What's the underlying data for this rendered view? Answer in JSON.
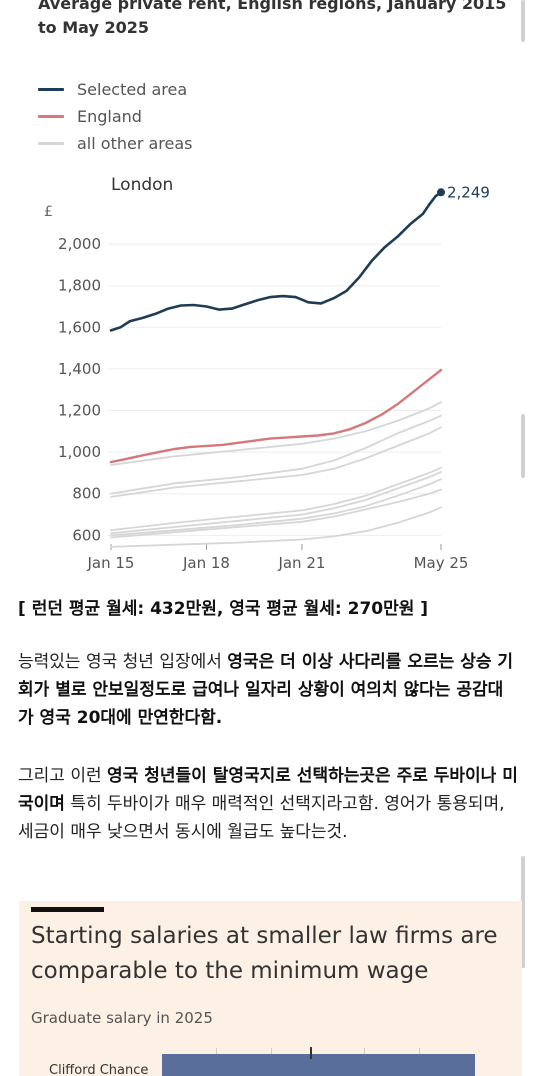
{
  "chart": {
    "title": "Average private rent, English regions, January 2015 to May 2025"
  },
  "legend": [
    {
      "label": "Selected area",
      "color": "#1d3c55"
    },
    {
      "label": "England",
      "color": "#d4787a"
    },
    {
      "label": "all other areas",
      "color": "#d6d6d6"
    }
  ],
  "chart_data": {
    "type": "line",
    "title": "Average private rent, English regions, January 2015 to May 2025",
    "panel_label": "London",
    "ylabel": "£",
    "ylim": [
      520,
      2260
    ],
    "yticks": [
      600,
      800,
      1000,
      1200,
      1400,
      1600,
      1800,
      2000
    ],
    "ytick_labels": [
      "600",
      "800",
      "1,000",
      "1,200",
      "1,400",
      "1,600",
      "1,800",
      "2,000"
    ],
    "xlim": [
      2015.0,
      2025.37
    ],
    "xticks": [
      2015.0,
      2018.0,
      2021.0,
      2025.37
    ],
    "xtick_labels": [
      "Jan 15",
      "Jan 18",
      "Jan 21",
      "May 25"
    ],
    "end_label": "2,249",
    "series": [
      {
        "name": "Selected area",
        "role": "selected",
        "color": "#1d3c55",
        "x": [
          2015.0,
          2015.3,
          2015.6,
          2016.0,
          2016.4,
          2016.8,
          2017.2,
          2017.6,
          2018.0,
          2018.4,
          2018.8,
          2019.2,
          2019.6,
          2020.0,
          2020.4,
          2020.8,
          2021.2,
          2021.6,
          2022.0,
          2022.4,
          2022.8,
          2023.2,
          2023.6,
          2024.0,
          2024.4,
          2024.8,
          2025.0,
          2025.2,
          2025.37
        ],
        "y": [
          1585,
          1600,
          1630,
          1645,
          1665,
          1690,
          1705,
          1707,
          1700,
          1685,
          1690,
          1710,
          1730,
          1745,
          1750,
          1745,
          1720,
          1715,
          1740,
          1775,
          1840,
          1920,
          1985,
          2035,
          2095,
          2145,
          2190,
          2230,
          2249
        ]
      },
      {
        "name": "England",
        "role": "england",
        "color": "#d4787a",
        "x": [
          2015.0,
          2015.5,
          2016.0,
          2016.5,
          2017.0,
          2017.5,
          2018.0,
          2018.5,
          2019.0,
          2019.5,
          2020.0,
          2020.5,
          2021.0,
          2021.5,
          2022.0,
          2022.5,
          2023.0,
          2023.5,
          2024.0,
          2024.5,
          2025.0,
          2025.37
        ],
        "y": [
          952,
          968,
          985,
          1000,
          1015,
          1025,
          1030,
          1035,
          1045,
          1055,
          1065,
          1070,
          1075,
          1080,
          1090,
          1110,
          1140,
          1180,
          1230,
          1290,
          1350,
          1395
        ]
      },
      {
        "role": "other",
        "color": "#d6d6d6",
        "x": [
          2015.0,
          2017.0,
          2019.0,
          2021.0,
          2022.0,
          2023.0,
          2024.0,
          2025.0,
          2025.37
        ],
        "y": [
          938,
          980,
          1010,
          1040,
          1065,
          1100,
          1150,
          1210,
          1240
        ]
      },
      {
        "role": "other",
        "color": "#d6d6d6",
        "x": [
          2015.0,
          2017.0,
          2019.0,
          2021.0,
          2022.0,
          2023.0,
          2024.0,
          2025.0,
          2025.37
        ],
        "y": [
          800,
          850,
          880,
          920,
          960,
          1020,
          1090,
          1150,
          1175
        ]
      },
      {
        "role": "other",
        "color": "#d6d6d6",
        "x": [
          2015.0,
          2017.0,
          2019.0,
          2021.0,
          2022.0,
          2023.0,
          2024.0,
          2025.0,
          2025.37
        ],
        "y": [
          785,
          830,
          860,
          890,
          920,
          970,
          1030,
          1090,
          1120
        ]
      },
      {
        "role": "other",
        "color": "#d6d6d6",
        "x": [
          2015.0,
          2017.0,
          2019.0,
          2021.0,
          2022.0,
          2023.0,
          2024.0,
          2025.0,
          2025.37
        ],
        "y": [
          625,
          660,
          690,
          720,
          750,
          790,
          845,
          900,
          925
        ]
      },
      {
        "role": "other",
        "color": "#d6d6d6",
        "x": [
          2015.0,
          2017.0,
          2019.0,
          2021.0,
          2022.0,
          2023.0,
          2024.0,
          2025.0,
          2025.37
        ],
        "y": [
          610,
          640,
          670,
          700,
          730,
          770,
          825,
          880,
          905
        ]
      },
      {
        "role": "other",
        "color": "#d6d6d6",
        "x": [
          2015.0,
          2017.0,
          2019.0,
          2021.0,
          2022.0,
          2023.0,
          2024.0,
          2025.0,
          2025.37
        ],
        "y": [
          600,
          625,
          650,
          680,
          705,
          740,
          790,
          845,
          870
        ]
      },
      {
        "role": "other",
        "color": "#d6d6d6",
        "x": [
          2015.0,
          2017.0,
          2019.0,
          2021.0,
          2022.0,
          2023.0,
          2024.0,
          2025.0,
          2025.37
        ],
        "y": [
          590,
          615,
          640,
          665,
          690,
          725,
          760,
          800,
          820
        ]
      },
      {
        "role": "other",
        "color": "#d6d6d6",
        "x": [
          2015.0,
          2017.0,
          2019.0,
          2021.0,
          2022.0,
          2023.0,
          2024.0,
          2025.0,
          2025.37
        ],
        "y": [
          545,
          555,
          565,
          580,
          595,
          620,
          660,
          710,
          735
        ]
      }
    ]
  },
  "post": {
    "caption": "[ 런던 평균 월세: 432만원, 영국 평균 월세: 270만원 ]",
    "para1": {
      "plain1": "능력있는 영국 청년 입장에서 ",
      "bold1": "영국은 더 이상 사다리를 오르는 상승 기회가 별로 안보일정도로 급여나 일자리 상황이 여의치 않다는 공감대가 영국 20대에 만연한다함."
    },
    "para2": {
      "plain1": "그리고 이런 ",
      "bold1": "영국 청년들이 탈영국지로 선택하는곳은 주로 두바이나 미국이며",
      "plain2": " 특히 두바이가 매우 매력적인 선택지라고함. 영어가 통용되며, 세금이 매우 낮으면서 동시에 월급도 높다는것."
    }
  },
  "ft_card": {
    "title": "Starting salaries at smaller law firms are comparable to the minimum wage",
    "subtitle": "Graduate salary in 2025",
    "row_label": "Clifford Chance"
  }
}
